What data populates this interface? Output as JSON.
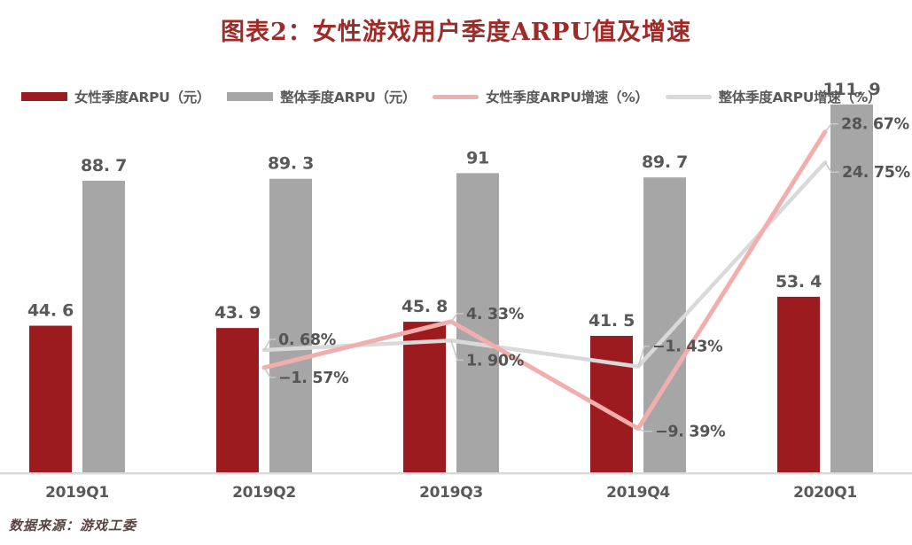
{
  "title": "图表2：女性游戏用户季度ARPU值及增速",
  "source": "数据来源：游戏工委",
  "colors": {
    "title": "#9E2B28",
    "source_text": "#594340",
    "female_bar": "#9C1B1F",
    "overall_bar": "#A6A6A6",
    "female_line": "#F2AEAD",
    "overall_line": "#D9D9D9",
    "value_label": "#595959",
    "pct_label": "#545454",
    "axis_label": "#595959",
    "baseline": "#D9D9D9",
    "leader_line": "#C8C8C8"
  },
  "chart_data": {
    "type": "combo-bar-line",
    "title": "图表2：女性游戏用户季度ARPU值及增速",
    "categories": [
      "2019Q1",
      "2019Q2",
      "2019Q3",
      "2019Q4",
      "2020Q1"
    ],
    "series": [
      {
        "name": "女性季度ARPU（元）",
        "type": "bar",
        "axis": "left",
        "color": "#9C1B1F",
        "values": [
          44.6,
          43.9,
          45.8,
          41.5,
          53.4
        ],
        "labels": [
          "44. 6",
          "43. 9",
          "45. 8",
          "41. 5",
          "53. 4"
        ]
      },
      {
        "name": "整体季度ARPU（元）",
        "type": "bar",
        "axis": "left",
        "color": "#A6A6A6",
        "values": [
          88.7,
          89.3,
          91,
          89.7,
          111.9
        ],
        "labels": [
          "88. 7",
          "89. 3",
          "91",
          "89. 7",
          "111. 9"
        ]
      },
      {
        "name": "女性季度ARPU增速（%）",
        "type": "line",
        "axis": "right",
        "color": "#F2AEAD",
        "values": [
          null,
          -1.57,
          4.33,
          -9.39,
          28.67
        ],
        "labels": [
          null,
          "−1. 57%",
          "4. 33%",
          "−9. 39%",
          "28. 67%"
        ]
      },
      {
        "name": "整体季度ARPU增速（%）",
        "type": "line",
        "axis": "right",
        "color": "#D9D9D9",
        "values": [
          null,
          0.68,
          1.9,
          -1.43,
          24.75
        ],
        "labels": [
          null,
          "0. 68%",
          "1. 90%",
          "−1. 43%",
          "24. 75%"
        ]
      }
    ],
    "legend_position": "top-left",
    "grid": false,
    "y_axis_left": {
      "visible": false,
      "implied_range": [
        0,
        120
      ]
    },
    "y_axis_right": {
      "visible": false,
      "implied_range": [
        -15,
        30
      ]
    }
  }
}
